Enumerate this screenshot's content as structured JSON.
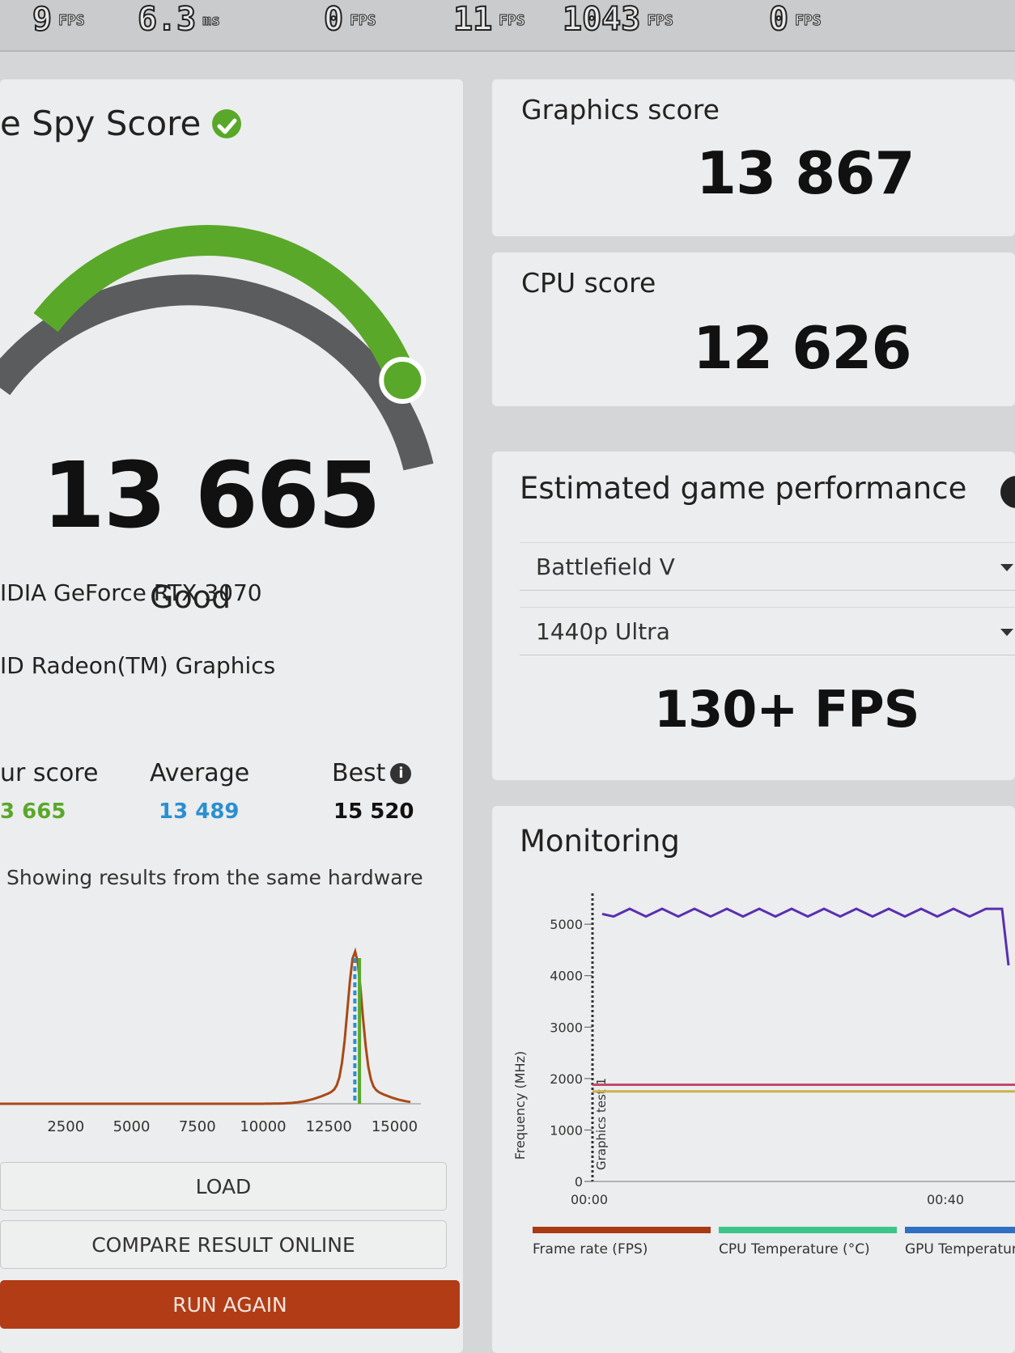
{
  "overlay": {
    "counters": [
      {
        "value": "9",
        "unit": "FPS"
      },
      {
        "value": "6.3",
        "unit": "ms"
      },
      {
        "value": "0",
        "unit": "FPS"
      },
      {
        "value": "11",
        "unit": "FPS"
      },
      {
        "value": "1043",
        "unit": "FPS"
      },
      {
        "value": "0",
        "unit": "FPS"
      }
    ]
  },
  "score_panel": {
    "title": "e Spy Score",
    "score": "13 665",
    "rating": "Good",
    "gauge_fraction": 0.84,
    "gpu": "IDIA GeForce RTX 3070",
    "cpu": "ID Radeon(TM) Graphics",
    "comparison": {
      "your_label": "ur score",
      "your_value": "3 665",
      "average_label": "Average",
      "average_value": "13 489",
      "best_label": "Best",
      "best_value": "15 520"
    },
    "note": "Showing results from the same hardware",
    "histogram": {
      "x_ticks": [
        "2500",
        "5000",
        "7500",
        "10000",
        "12500",
        "15000"
      ],
      "your_score": 13665,
      "average": 13489
    },
    "buttons": {
      "load": "LOAD",
      "compare": "COMPARE RESULT ONLINE",
      "run_again": "RUN AGAIN"
    }
  },
  "graphics": {
    "label": "Graphics score",
    "value": "13 867"
  },
  "cpu_score": {
    "label": "CPU score",
    "value": "12 626"
  },
  "estimate": {
    "title": "Estimated game performance",
    "game": "Battlefield V",
    "preset": "1440p Ultra",
    "fps": "130+ FPS"
  },
  "monitoring": {
    "title": "Monitoring",
    "ylabel": "Frequency (MHz)",
    "y_ticks": [
      "0",
      "1000",
      "2000",
      "3000",
      "4000",
      "5000"
    ],
    "x_ticks": [
      "00:00",
      "00:40"
    ],
    "marker_label": "Graphics test 1",
    "legend": [
      {
        "name": "Frame rate (FPS)",
        "color": "#a83a14"
      },
      {
        "name": "CPU Temperature (°C)",
        "color": "#3cc58a"
      },
      {
        "name": "GPU Temperatur",
        "color": "#2f6fc4"
      }
    ],
    "colors": {
      "cpu_clock": "#5a2fb0",
      "gpu_clock": "#c24a6c",
      "memory": "#c9b24a"
    }
  },
  "colors": {
    "accent_green": "#5aa82a",
    "average_blue": "#2b8fd1",
    "run_button": "#b13c16"
  }
}
